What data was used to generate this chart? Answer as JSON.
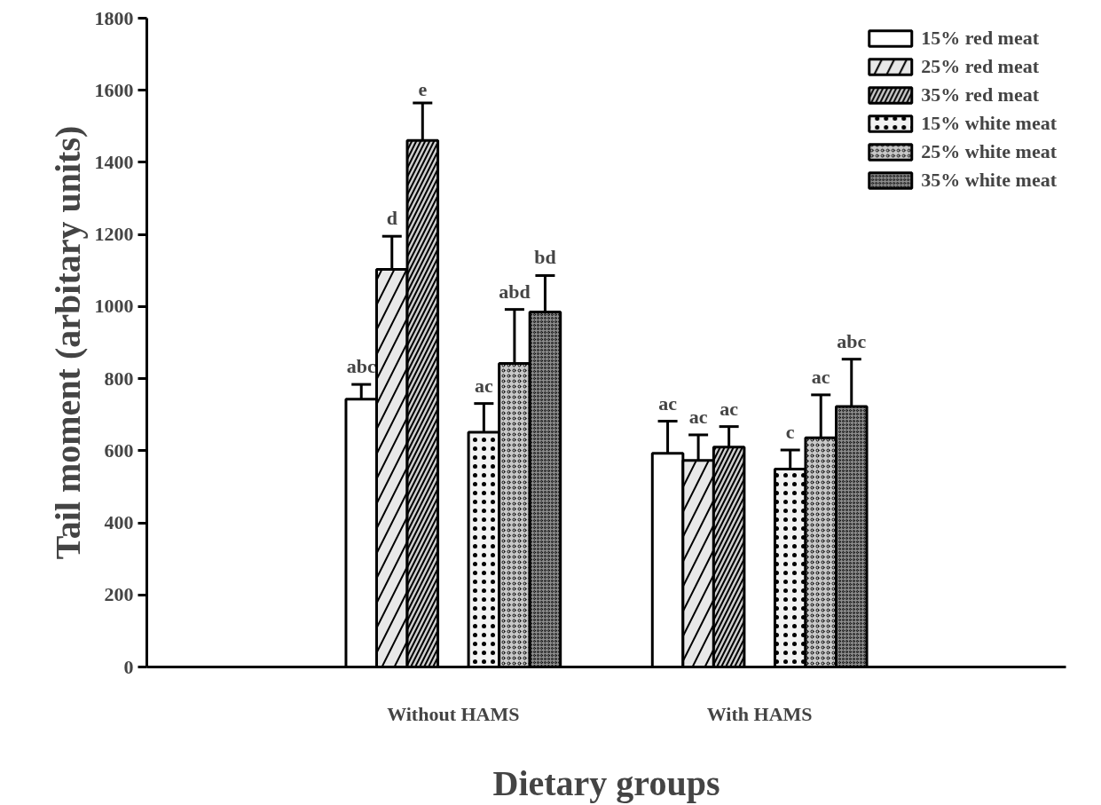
{
  "chart_data": {
    "type": "bar",
    "xlabel": "Dietary groups",
    "ylabel": "Tail moment (arbitary units)",
    "categories": [
      "Without HAMS",
      "With HAMS"
    ],
    "series": [
      {
        "name": "15% red meat",
        "color": "#ffffff",
        "values": [
          743,
          593
        ],
        "errors": [
          [
            743,
            784
          ],
          [
            593,
            682
          ]
        ],
        "value_labels": [
          "abc",
          "ac"
        ]
      },
      {
        "name": "25% red meat",
        "color": "#e8e8e8",
        "values": [
          1103,
          573
        ],
        "errors": [
          [
            1103,
            1195
          ],
          [
            573,
            644
          ]
        ],
        "value_labels": [
          "d",
          "ac"
        ]
      },
      {
        "name": "35% red meat",
        "color": "#d0d0d0",
        "values": [
          1461,
          610
        ],
        "errors": [
          [
            1461,
            1565
          ],
          [
            610,
            667
          ]
        ],
        "value_labels": [
          "e",
          "ac"
        ]
      },
      {
        "name": "15% white meat",
        "color": "#f2f2f2",
        "values": [
          651,
          549
        ],
        "errors": [
          [
            651,
            731
          ],
          [
            549,
            602
          ]
        ],
        "value_labels": [
          "ac",
          "c"
        ]
      },
      {
        "name": "25% white meat",
        "color": "#c8c8c8",
        "values": [
          842,
          636
        ],
        "errors": [
          [
            842,
            992
          ],
          [
            636,
            755
          ]
        ],
        "value_labels": [
          "abd",
          "ac"
        ]
      },
      {
        "name": "35% white meat",
        "color": "#8c8c8c",
        "values": [
          985,
          723
        ],
        "errors": [
          [
            985,
            1086
          ],
          [
            723,
            854
          ]
        ],
        "value_labels": [
          "bd",
          "abc"
        ]
      }
    ],
    "ylim": [
      0,
      1800
    ],
    "yticks": [
      0,
      200,
      400,
      600,
      800,
      1000,
      1200,
      1400,
      1600,
      1800
    ],
    "grid": false,
    "legend": "top right"
  }
}
